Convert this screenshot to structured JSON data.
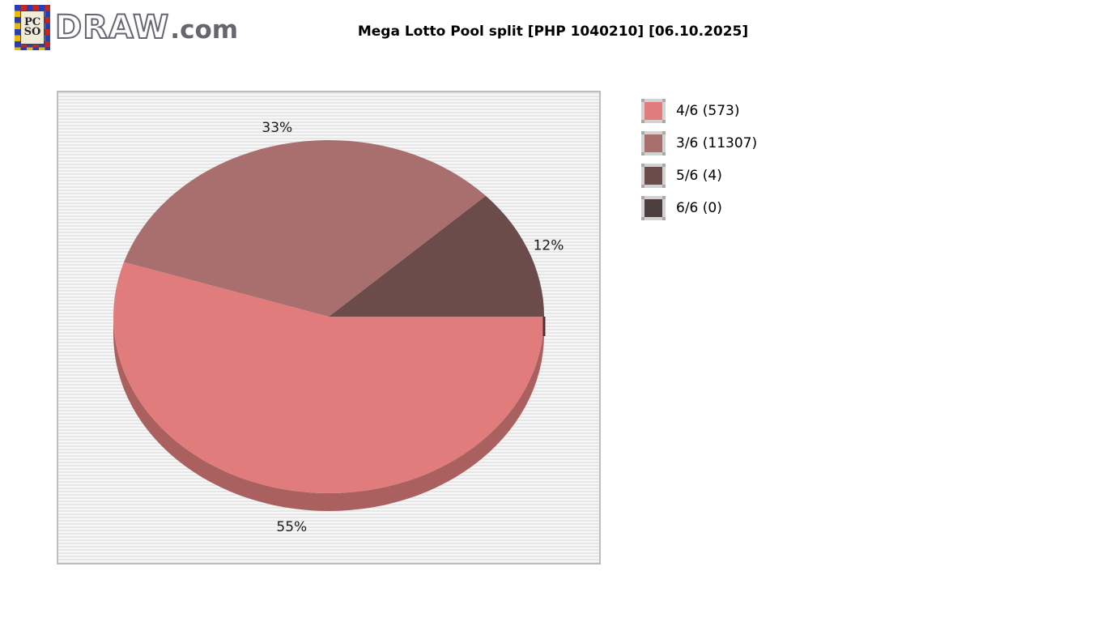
{
  "page": {
    "title": "Mega Lotto Pool split [PHP 1040210] [06.10.2025]"
  },
  "logo": {
    "emblem_line1": "PC",
    "emblem_line2": "SO",
    "brand": "DRAW",
    "brand_suffix": ".com"
  },
  "chart_data": {
    "type": "pie",
    "style": "3d",
    "title": "Mega Lotto Pool split [PHP 1040210] [06.10.2025]",
    "currency": "PHP",
    "pool_amount": "1040210",
    "draw_date": "06.10.2025",
    "legend_position": "right",
    "slices": [
      {
        "label": "4/6 (573)",
        "tier": "4/6",
        "winners": 573,
        "pct": 55,
        "pct_label": "55%",
        "color": "#e07c7c"
      },
      {
        "label": "3/6 (11307)",
        "tier": "3/6",
        "winners": 11307,
        "pct": 33,
        "pct_label": "33%",
        "color": "#a96e6e"
      },
      {
        "label": "5/6 (4)",
        "tier": "5/6",
        "winners": 4,
        "pct": 12,
        "pct_label": "12%",
        "color": "#6c4b4b"
      },
      {
        "label": "6/6 (0)",
        "tier": "6/6",
        "winners": 0,
        "pct": 0,
        "pct_label": "",
        "color": "#4d3f3f"
      }
    ],
    "colors": {
      "side": "#ab6060",
      "side_edge": "#4a3134",
      "label_text": "#1a1a1a"
    }
  }
}
